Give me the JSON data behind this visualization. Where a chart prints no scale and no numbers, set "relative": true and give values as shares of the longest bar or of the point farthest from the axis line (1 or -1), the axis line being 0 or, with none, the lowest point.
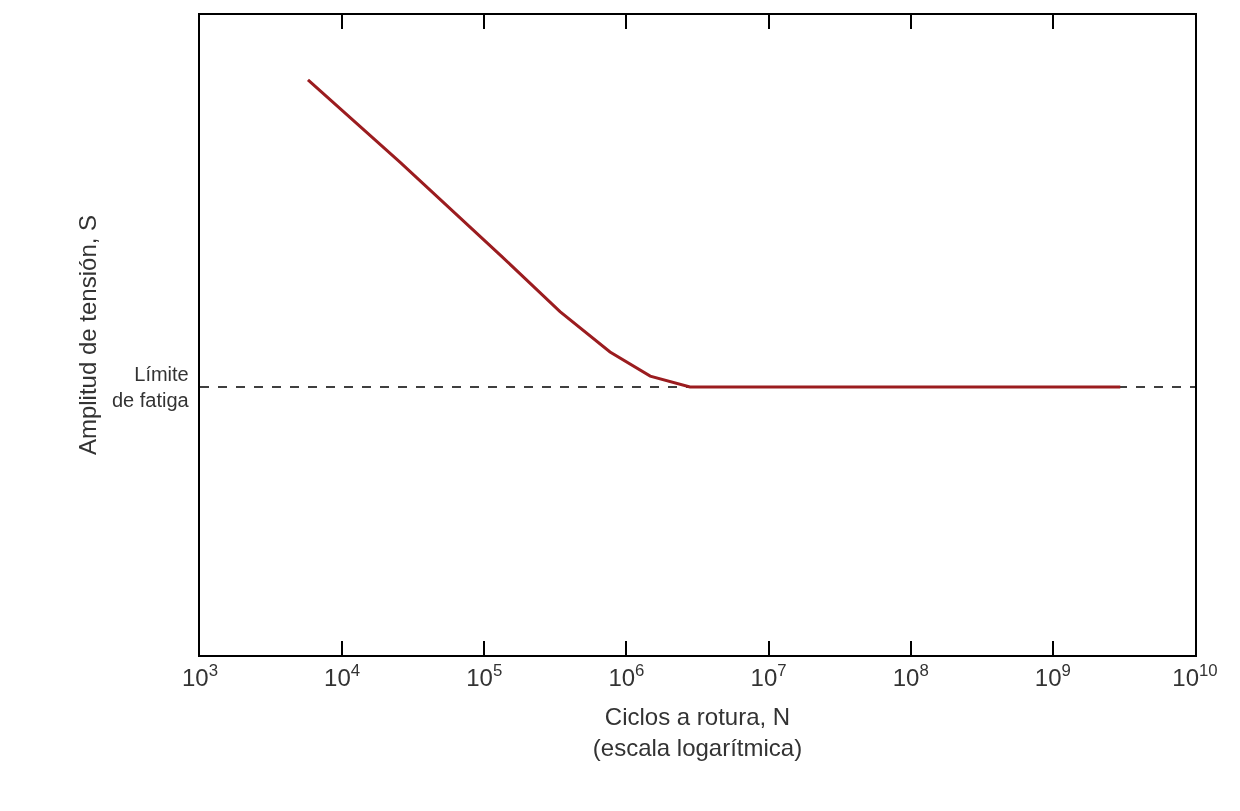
{
  "chart_data": {
    "type": "line",
    "relative": true,
    "log": "x",
    "marker": "none",
    "line_style": "solid",
    "xlabel": "Ciclos a rotura, N\n(escala logarítmica)",
    "ylabel": "Amplitud de tensión, S",
    "xlim": [
      1000,
      10000000000
    ],
    "xticks": [
      {
        "value": 1000,
        "label": "10$^{3}$"
      },
      {
        "value": 10000,
        "label": "10$^{4}$"
      },
      {
        "value": 100000,
        "label": "10$^{5}$"
      },
      {
        "value": 1000000,
        "label": "10$^{6}$"
      },
      {
        "value": 10000000,
        "label": "10$^{7}$"
      },
      {
        "value": 100000000,
        "label": "10$^{8}$"
      },
      {
        "value": 1000000000,
        "label": "10$^{9}$"
      },
      {
        "value": 10000000000,
        "label": "10$^{10}$"
      }
    ],
    "tick_labels": "x",
    "series": [
      {
        "color": "#9b1c1f",
        "x": [
          5750,
          25500,
          129000,
          341000,
          767000,
          1470000,
          2800000,
          2980000000
        ],
        "values": [
          1,
          0.857,
          0.696,
          0.597,
          0.527,
          0.485,
          0.466,
          0.466
        ]
      }
    ],
    "ref_lines": [
      {
        "axis": "y",
        "value": 0.466,
        "label": "Límite\nde fatiga",
        "color": "#000000",
        "line_style": "dashed"
      }
    ]
  }
}
